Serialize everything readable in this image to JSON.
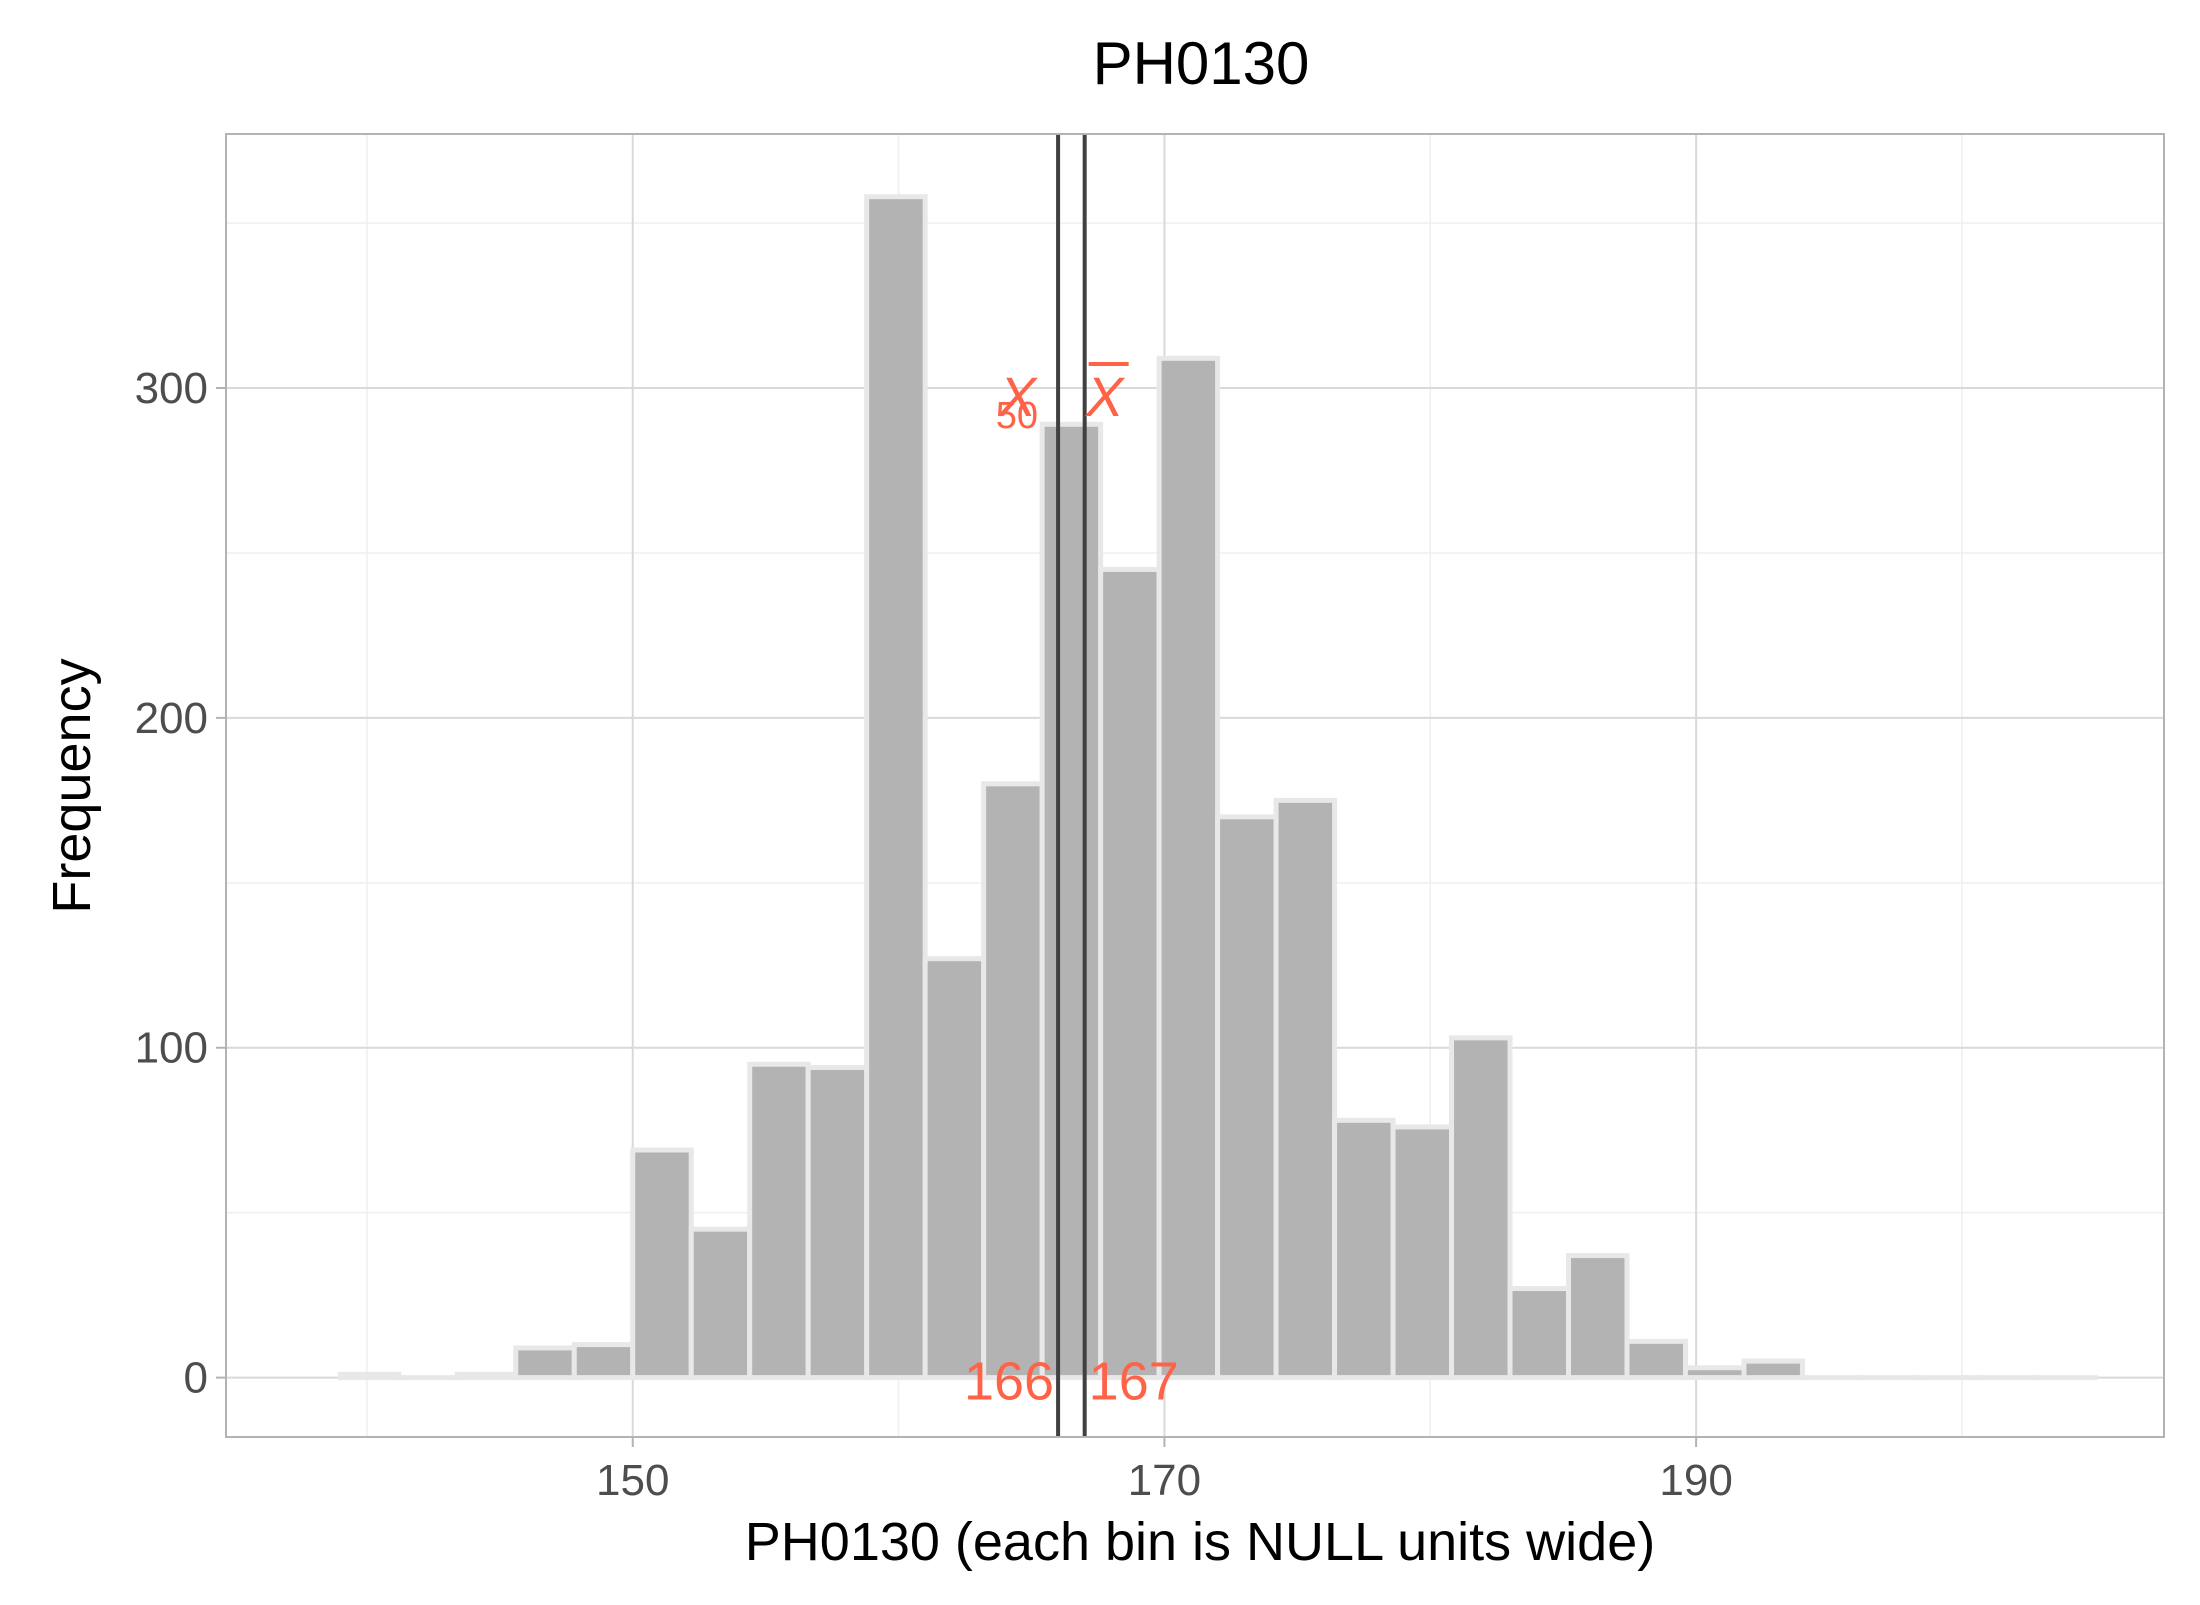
{
  "chart_data": {
    "type": "bar",
    "title": "PH0130",
    "xlabel": "PH0130 (each bin is NULL units wide)",
    "ylabel": "Frequency",
    "xlim": [
      134.7,
      207.6
    ],
    "ylim": [
      -18,
      377
    ],
    "x_ticks": [
      150,
      170,
      190
    ],
    "y_ticks": [
      0,
      100,
      200,
      300
    ],
    "grid": true,
    "bin_width": 2.2,
    "bins": [
      {
        "start": 139.0,
        "value": 1
      },
      {
        "start": 141.2,
        "value": 0
      },
      {
        "start": 143.4,
        "value": 1
      },
      {
        "start": 145.6,
        "value": 9
      },
      {
        "start": 147.8,
        "value": 10
      },
      {
        "start": 150.0,
        "value": 69
      },
      {
        "start": 152.2,
        "value": 45
      },
      {
        "start": 154.4,
        "value": 95
      },
      {
        "start": 156.6,
        "value": 94
      },
      {
        "start": 158.8,
        "value": 358
      },
      {
        "start": 161.0,
        "value": 127
      },
      {
        "start": 163.2,
        "value": 180
      },
      {
        "start": 165.4,
        "value": 289
      },
      {
        "start": 167.6,
        "value": 245
      },
      {
        "start": 169.8,
        "value": 309
      },
      {
        "start": 172.0,
        "value": 170
      },
      {
        "start": 174.2,
        "value": 175
      },
      {
        "start": 176.4,
        "value": 78
      },
      {
        "start": 178.6,
        "value": 76
      },
      {
        "start": 180.8,
        "value": 103
      },
      {
        "start": 183.0,
        "value": 27
      },
      {
        "start": 185.2,
        "value": 37
      },
      {
        "start": 187.4,
        "value": 11
      },
      {
        "start": 189.6,
        "value": 3
      },
      {
        "start": 191.8,
        "value": 5
      },
      {
        "start": 194.0,
        "value": 0
      },
      {
        "start": 196.2,
        "value": 0
      },
      {
        "start": 198.4,
        "value": 0
      },
      {
        "start": 200.6,
        "value": 0
      },
      {
        "start": 202.8,
        "value": 0
      }
    ],
    "annotations": {
      "median": {
        "value": 166,
        "symbol_main": "X",
        "symbol_sub": "50",
        "label": "166"
      },
      "mean": {
        "value": 167,
        "symbol": "X",
        "label": "167"
      }
    },
    "colors": {
      "bar_fill": "#B3B3B3",
      "bar_edge": "#E8E8E8",
      "annotation": "#FF6347",
      "vline": "#404040",
      "grid_major": "#D9D9D9",
      "grid_minor": "#EFEFEF",
      "panel_border": "#B3B3B3"
    }
  }
}
